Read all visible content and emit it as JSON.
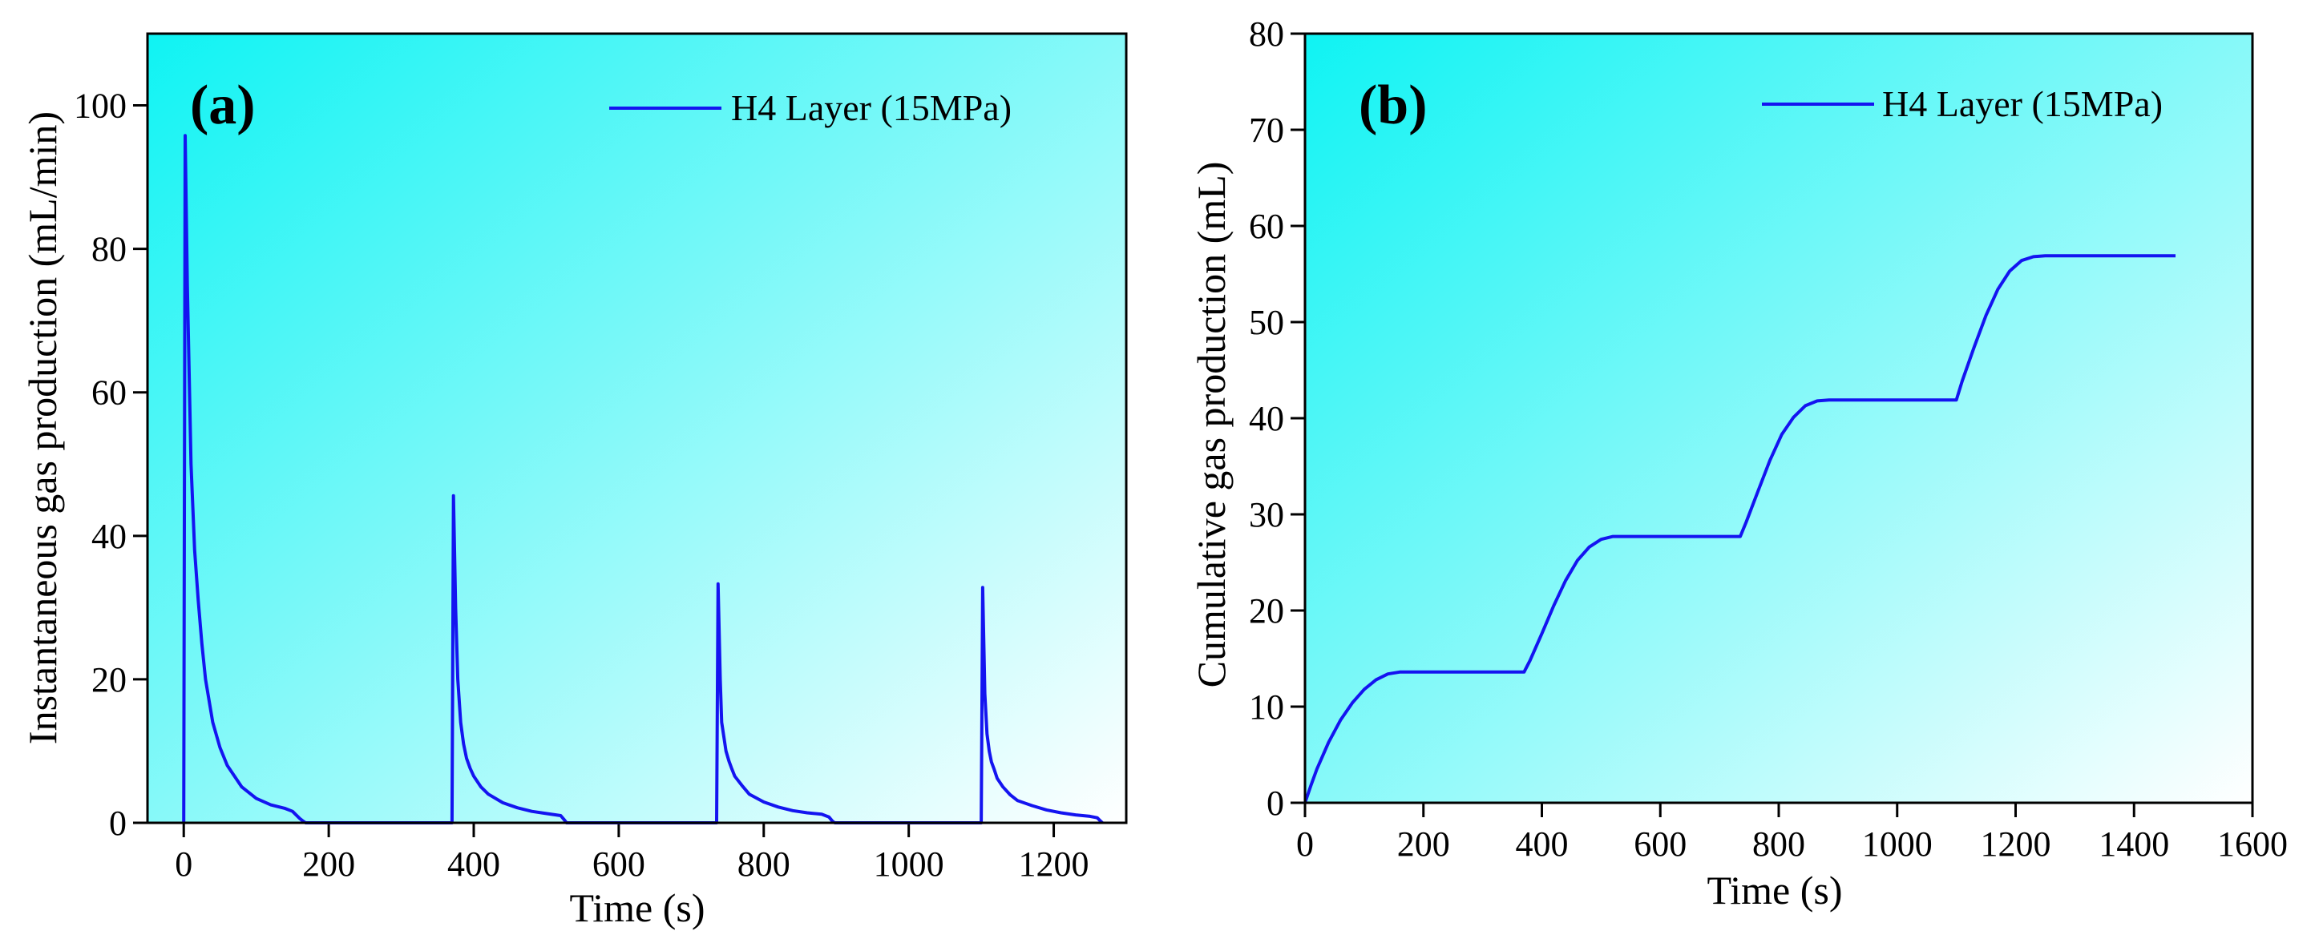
{
  "colors": {
    "line": "#1414f0",
    "bg_start": "#0ff3f3",
    "bg_end": "#ffffff",
    "axis": "#000000"
  },
  "chart_data": [
    {
      "type": "line",
      "panel_label": "(a)",
      "title": "",
      "xlabel": "Time (s)",
      "ylabel": "Instantaneous gas production (mL/min)",
      "xlim": [
        -50,
        1300
      ],
      "ylim": [
        0,
        110
      ],
      "xticks": [
        0,
        200,
        400,
        600,
        800,
        1000,
        1200
      ],
      "yticks": [
        0,
        20,
        40,
        60,
        80,
        100
      ],
      "xtick_labels": [
        "0",
        "200",
        "400",
        "600",
        "800",
        "1000",
        "1200"
      ],
      "ytick_labels": [
        "0",
        "20",
        "40",
        "60",
        "80",
        "100"
      ],
      "grid": false,
      "legend_position": "top-right",
      "series": [
        {
          "name": "H4 Layer (15MPa)",
          "x": [
            0,
            2,
            5,
            10,
            15,
            20,
            25,
            30,
            40,
            50,
            60,
            80,
            100,
            120,
            140,
            150,
            160,
            165,
            168,
            370,
            372,
            375,
            378,
            382,
            386,
            390,
            395,
            400,
            410,
            420,
            440,
            460,
            480,
            500,
            520,
            525,
            528,
            735,
            737,
            740,
            742,
            745,
            748,
            752,
            756,
            760,
            770,
            780,
            800,
            820,
            840,
            860,
            880,
            890,
            895,
            898,
            1100,
            1102,
            1105,
            1108,
            1111,
            1114,
            1118,
            1122,
            1130,
            1140,
            1150,
            1170,
            1190,
            1210,
            1230,
            1250,
            1260,
            1264,
            1267
          ],
          "values": [
            0,
            95.8,
            75,
            50,
            38,
            31,
            25,
            20,
            14,
            10.5,
            8,
            5,
            3.4,
            2.5,
            2,
            1.6,
            0.6,
            0.2,
            0,
            0,
            45.6,
            30,
            20,
            14,
            11,
            9,
            7.6,
            6.5,
            5,
            4,
            2.8,
            2.1,
            1.6,
            1.3,
            1,
            0.4,
            0,
            0,
            33.3,
            20,
            14,
            12,
            10,
            8.6,
            7.5,
            6.5,
            5.2,
            4,
            2.9,
            2.2,
            1.7,
            1.4,
            1.2,
            0.8,
            0.2,
            0,
            0,
            32.8,
            18,
            12.4,
            10,
            8.5,
            7.4,
            6.2,
            5,
            3.9,
            3.1,
            2.4,
            1.8,
            1.4,
            1.1,
            0.9,
            0.7,
            0.3,
            0
          ]
        }
      ]
    },
    {
      "type": "line",
      "panel_label": "(b)",
      "title": "",
      "xlabel": "Time (s)",
      "ylabel": "Cumulative gas production (mL)",
      "xlim": [
        0,
        1600
      ],
      "ylim": [
        0,
        80
      ],
      "xticks": [
        0,
        200,
        400,
        600,
        800,
        1000,
        1200,
        1400,
        1600
      ],
      "yticks": [
        0,
        10,
        20,
        30,
        40,
        50,
        60,
        70,
        80
      ],
      "xtick_labels": [
        "0",
        "200",
        "400",
        "600",
        "800",
        "1000",
        "1200",
        "1400",
        "1600"
      ],
      "ytick_labels": [
        "0",
        "10",
        "20",
        "30",
        "40",
        "50",
        "60",
        "70",
        "80"
      ],
      "grid": false,
      "legend_position": "top-right",
      "series": [
        {
          "name": "H4 Layer (15MPa)",
          "x": [
            0,
            10,
            20,
            40,
            60,
            80,
            100,
            120,
            140,
            160,
            170,
            370,
            380,
            400,
            420,
            440,
            460,
            480,
            500,
            520,
            535,
            735,
            745,
            765,
            785,
            805,
            825,
            845,
            865,
            885,
            900,
            1100,
            1110,
            1130,
            1150,
            1170,
            1190,
            1210,
            1230,
            1250,
            1265,
            1470
          ],
          "values": [
            0,
            1.8,
            3.5,
            6.3,
            8.6,
            10.4,
            11.8,
            12.8,
            13.4,
            13.6,
            13.6,
            13.6,
            14.8,
            17.6,
            20.5,
            23.1,
            25.2,
            26.6,
            27.4,
            27.7,
            27.7,
            27.7,
            29.2,
            32.4,
            35.6,
            38.3,
            40.1,
            41.3,
            41.8,
            41.9,
            41.9,
            41.9,
            43.9,
            47.4,
            50.7,
            53.4,
            55.3,
            56.4,
            56.8,
            56.9,
            56.9,
            56.9
          ]
        }
      ]
    }
  ]
}
